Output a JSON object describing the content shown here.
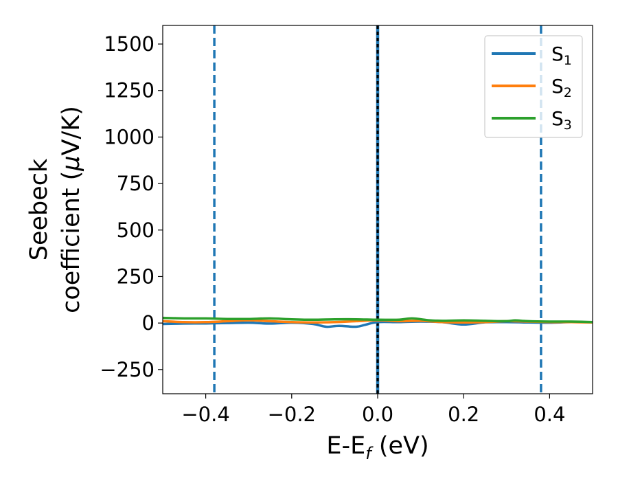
{
  "chart_data": {
    "type": "line",
    "title": "",
    "xlabel": {
      "main": "E-E",
      "sub": "f",
      "unit": " (eV)"
    },
    "ylabel": {
      "line1": "Seebeck",
      "line2_main": "coefficient  (",
      "line2_mu": "μ",
      "line2_unit": "V/K)"
    },
    "xlim": [
      -0.5,
      0.5
    ],
    "ylim": [
      -380,
      1600
    ],
    "xticks": [
      -0.4,
      -0.2,
      0.0,
      0.2,
      0.4
    ],
    "xtick_labels": [
      "−0.4",
      "−0.2",
      "0.0",
      "0.2",
      "0.4"
    ],
    "yticks": [
      -250,
      0,
      250,
      500,
      750,
      1000,
      1250,
      1500
    ],
    "ytick_labels": [
      "−250",
      "0",
      "250",
      "500",
      "750",
      "1000",
      "1250",
      "1500"
    ],
    "vlines": [
      {
        "x": -0.38,
        "style": "dashed",
        "color": "#1f77b4"
      },
      {
        "x": 0.0,
        "style": "solid",
        "color": "#1f77b4"
      },
      {
        "x": 0.0,
        "style": "dotted",
        "color": "#000000"
      },
      {
        "x": 0.38,
        "style": "dashed",
        "color": "#1f77b4"
      }
    ],
    "legend": {
      "position": "top-right"
    },
    "series": [
      {
        "name": "S",
        "sub": "1",
        "color": "#1f77b4",
        "x": [
          -0.5,
          -0.45,
          -0.4,
          -0.35,
          -0.3,
          -0.25,
          -0.2,
          -0.15,
          -0.12,
          -0.09,
          -0.05,
          -0.03,
          0.0,
          0.05,
          0.1,
          0.15,
          0.2,
          0.25,
          0.3,
          0.35,
          0.4,
          0.45,
          0.5
        ],
        "y": [
          -5,
          -3,
          -2,
          0,
          2,
          -3,
          2,
          -5,
          -20,
          -15,
          -20,
          -10,
          5,
          5,
          8,
          5,
          -8,
          4,
          5,
          3,
          2,
          5,
          5
        ]
      },
      {
        "name": "S",
        "sub": "2",
        "color": "#ff7f0e",
        "x": [
          -0.5,
          -0.45,
          -0.4,
          -0.35,
          -0.3,
          -0.25,
          -0.2,
          -0.15,
          -0.1,
          -0.05,
          0.0,
          0.05,
          0.1,
          0.15,
          0.2,
          0.25,
          0.3,
          0.35,
          0.4,
          0.45,
          0.5
        ],
        "y": [
          10,
          5,
          5,
          10,
          15,
          10,
          5,
          3,
          5,
          10,
          15,
          10,
          12,
          5,
          3,
          5,
          10,
          8,
          5,
          5,
          3
        ]
      },
      {
        "name": "S",
        "sub": "3",
        "color": "#2ca02c",
        "x": [
          -0.5,
          -0.45,
          -0.4,
          -0.35,
          -0.3,
          -0.25,
          -0.2,
          -0.15,
          -0.1,
          -0.05,
          0.0,
          0.05,
          0.08,
          0.12,
          0.15,
          0.2,
          0.25,
          0.3,
          0.32,
          0.35,
          0.4,
          0.45,
          0.5
        ],
        "y": [
          28,
          25,
          25,
          22,
          22,
          25,
          20,
          18,
          20,
          20,
          18,
          18,
          25,
          15,
          12,
          14,
          12,
          10,
          14,
          10,
          8,
          8,
          5
        ]
      }
    ]
  }
}
